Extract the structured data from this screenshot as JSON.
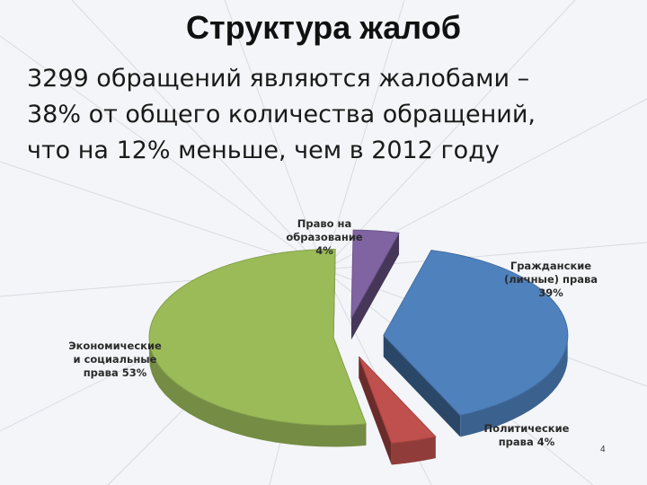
{
  "slide": {
    "title": "Структура жалоб",
    "subtitle_lines": [
      "3299 обращений являются жалобами –",
      "38% от общего количества обращений,",
      "что на 12% меньше, чем в 2012 году"
    ],
    "page_number": "4"
  },
  "chart_data": {
    "type": "pie",
    "title": "",
    "exploded": true,
    "three_d": true,
    "slices": [
      {
        "label_lines": [
          "Гражданские",
          "(личные) права",
          "39%"
        ],
        "value": 39,
        "color": "#4f81bd"
      },
      {
        "label_lines": [
          "Политические",
          "права 4%"
        ],
        "value": 4,
        "color": "#c0504d"
      },
      {
        "label_lines": [
          "Экономические",
          "и социальные",
          "права 53%"
        ],
        "value": 53,
        "color": "#9bbb59"
      },
      {
        "label_lines": [
          "Право на",
          "образование",
          "4%"
        ],
        "value": 4,
        "color": "#8064a2"
      }
    ]
  }
}
